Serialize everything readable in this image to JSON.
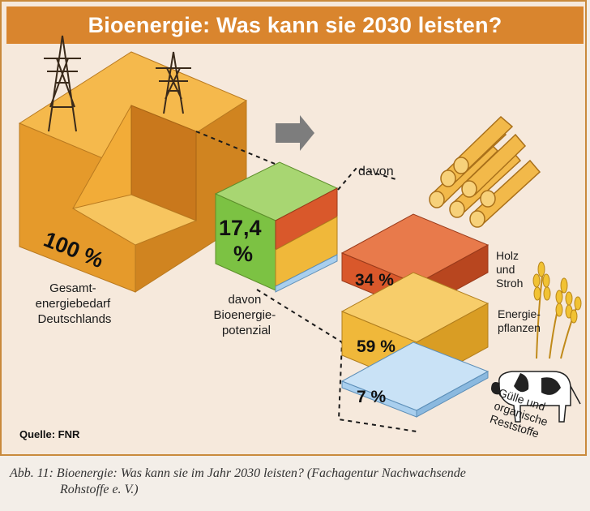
{
  "title": "Bioenergie: Was kann sie 2030 leisten?",
  "total": {
    "percent": "100 %",
    "label_lines": [
      "Gesamt-",
      "energiebedarf",
      "Deutschlands"
    ]
  },
  "potential": {
    "percent_lines": [
      "17,4",
      "%"
    ],
    "label_lines": [
      "davon",
      "Bioenergie-",
      "potenzial"
    ]
  },
  "breakdown_intro": "davon",
  "segments": [
    {
      "percent": "34 %",
      "label_lines": [
        "Holz",
        "und",
        "Stroh"
      ],
      "color": "#d9582b",
      "icon": "logs-icon"
    },
    {
      "percent": "59 %",
      "label_lines": [
        "Energie-",
        "pflanzen"
      ],
      "color": "#f0b83a",
      "icon": "wheat-icon"
    },
    {
      "percent": "7 %",
      "label_lines": [
        "Gülle und",
        "organische",
        "Reststoffe"
      ],
      "color": "#a9cfee",
      "icon": "cow-icon"
    }
  ],
  "source": "Quelle: FNR",
  "caption_lines": [
    "Abb. 11: Bioenergie: Was kann sie im Jahr 2030 leisten? (Fachagentur Nachwachsende",
    "Rohstoffe e. V.)"
  ],
  "colors": {
    "title_bar": "#d9852e",
    "large_cube": "#f0a631",
    "potential_cube": "#7cc243",
    "border": "#c98a3c"
  }
}
